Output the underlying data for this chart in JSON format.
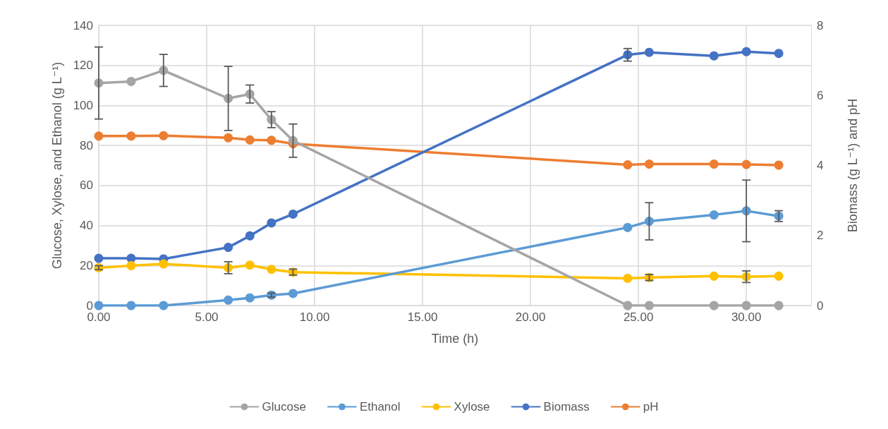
{
  "chart_data": {
    "type": "line",
    "xlabel": "Time (h)",
    "ylabel": "Glucose, Xylose, and Ethanol (g L⁻¹)",
    "y2label": "Biomass (g L⁻¹) and pH",
    "x": [
      0,
      1.5,
      3,
      6,
      7,
      8,
      9,
      24.5,
      25.5,
      28.5,
      30,
      31.5
    ],
    "xlim": [
      0,
      33
    ],
    "xticks": [
      {
        "value": 0,
        "label": "0.00"
      },
      {
        "value": 5,
        "label": "5.00"
      },
      {
        "value": 10,
        "label": "10.00"
      },
      {
        "value": 15,
        "label": "15.00"
      },
      {
        "value": 20,
        "label": "20.00"
      },
      {
        "value": 25,
        "label": "25.00"
      },
      {
        "value": 30,
        "label": "30.00"
      }
    ],
    "ylim": [
      0,
      140
    ],
    "yticks": [
      0,
      20,
      40,
      60,
      80,
      100,
      120,
      140
    ],
    "y2lim": [
      0,
      8
    ],
    "y2ticks": [
      0,
      2,
      4,
      6,
      8
    ],
    "grid": true,
    "legend": "bottom",
    "marker": "circle",
    "line_style": "solid",
    "series": [
      {
        "name": "Glucose",
        "color": "#a5a5a5",
        "values": [
          111.2,
          112,
          117.5,
          103.5,
          105.7,
          92.9,
          82.4,
          0,
          0,
          0,
          0,
          0
        ],
        "errors": [
          18,
          null,
          8,
          16,
          4.5,
          4,
          8.3,
          null,
          null,
          null,
          null,
          null
        ]
      },
      {
        "name": "Ethanol",
        "color": "#5b9bd5",
        "values": [
          0,
          0,
          0,
          2.7,
          3.8,
          5.2,
          6,
          39,
          42.1,
          45.3,
          47.3,
          44.7
        ],
        "errors": [
          null,
          null,
          null,
          null,
          null,
          1,
          null,
          null,
          9.3,
          null,
          15.4,
          2.7
        ]
      },
      {
        "name": "Xylose",
        "color": "#ffc000",
        "values": [
          18.9,
          19.9,
          20.8,
          18.9,
          20.2,
          18.1,
          16.7,
          13.6,
          14,
          14.7,
          14.4,
          14.7
        ],
        "errors": [
          1,
          null,
          null,
          3,
          null,
          null,
          1.5,
          null,
          1.5,
          null,
          2.9,
          null
        ]
      },
      {
        "name": "Biomass",
        "color": "#4472c4",
        "axis": "y2",
        "values": [
          1.35,
          1.35,
          1.33,
          1.66,
          1.99,
          2.36,
          2.61,
          7.16,
          7.23,
          7.13,
          7.25,
          7.2
        ],
        "errors": [
          null,
          null,
          null,
          null,
          null,
          null,
          null,
          0.18,
          null,
          null,
          null,
          null
        ]
      },
      {
        "name": "pH",
        "color": "#ed7d31",
        "axis": "y2",
        "values": [
          4.84,
          4.84,
          4.85,
          4.79,
          4.73,
          4.72,
          4.62,
          4.02,
          4.04,
          4.04,
          4.03,
          4.01
        ]
      }
    ]
  }
}
